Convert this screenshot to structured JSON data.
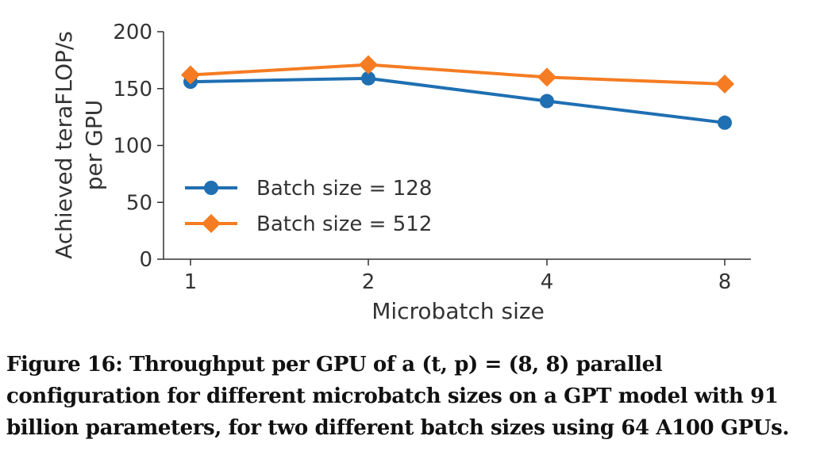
{
  "chart_data": {
    "type": "line",
    "xlabel": "Microbatch size",
    "ylabel_line1": "Achieved teraFLOP/s",
    "ylabel_line2": "per GPU",
    "categories": [
      "1",
      "2",
      "4",
      "8"
    ],
    "y_ticks": [
      "0",
      "50",
      "100",
      "150",
      "200"
    ],
    "ylim": [
      0,
      200
    ],
    "grid": false,
    "legend_position": "lower-left",
    "series": [
      {
        "name": "Batch size = 128",
        "color": "#1f6fb2",
        "marker": "circle",
        "values": [
          156,
          159,
          139,
          120
        ]
      },
      {
        "name": "Batch size = 512",
        "color": "#f57c22",
        "marker": "diamond",
        "values": [
          162,
          171,
          160,
          154
        ]
      }
    ]
  },
  "caption": "Figure 16: Throughput per GPU of a (t, p) = (8, 8) parallel configuration for different microbatch sizes on a GPT model with 91 billion parameters, for two different batch sizes using 64 A100 GPUs."
}
